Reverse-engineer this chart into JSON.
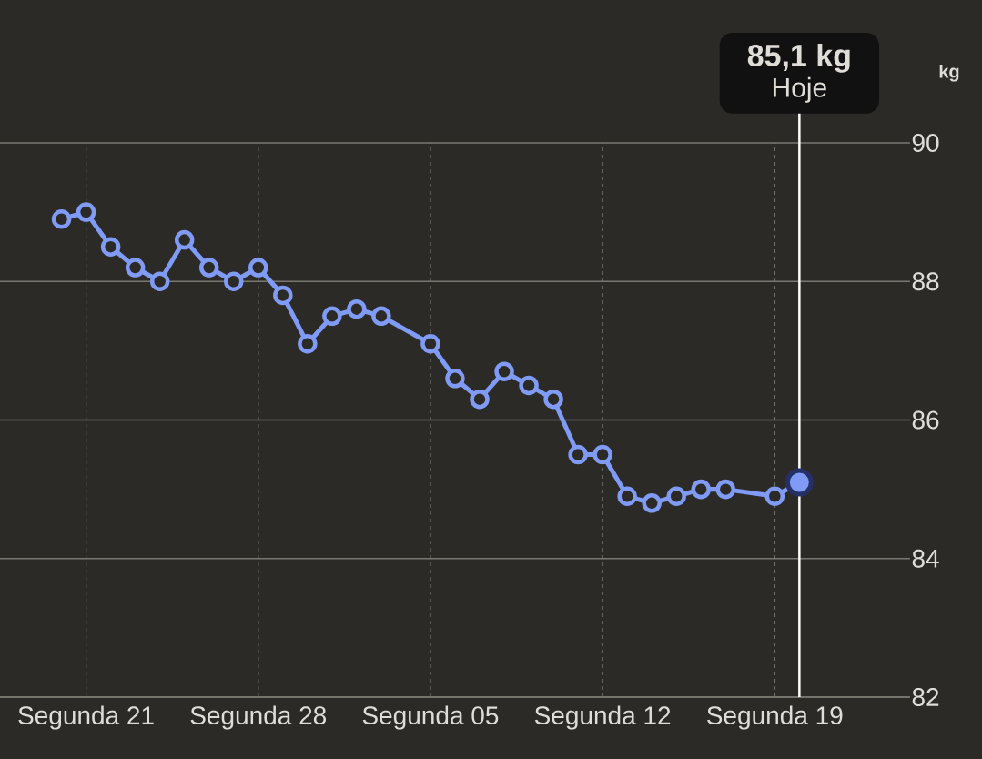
{
  "chart_data": {
    "type": "line",
    "ylabel": "kg",
    "categories": [
      null,
      null,
      null,
      "Segunda 21",
      null,
      null,
      null,
      null,
      null,
      null,
      "Segunda 28",
      null,
      null,
      null,
      null,
      null,
      null,
      "Segunda 05",
      null,
      null,
      null,
      null,
      null,
      null,
      "Segunda 12",
      null,
      null,
      null,
      null,
      null,
      null,
      "Segunda 19",
      null,
      null,
      null,
      null,
      null
    ],
    "series": [
      {
        "color": "#7f9bf5",
        "values": [
          null,
          null,
          88.9,
          89.0,
          88.5,
          88.2,
          88.0,
          88.6,
          88.2,
          88.0,
          88.2,
          87.8,
          87.1,
          87.5,
          87.6,
          87.5,
          null,
          87.1,
          86.6,
          86.3,
          86.7,
          86.5,
          86.3,
          85.5,
          85.5,
          84.9,
          84.8,
          84.9,
          85.0,
          85.0,
          null,
          84.9,
          85.1,
          null,
          null,
          null,
          null
        ]
      },
      {
        "type": "scatter",
        "color": "#7f9bf5",
        "values": [
          null,
          null,
          null,
          null,
          null,
          null,
          null,
          null,
          null,
          null,
          null,
          null,
          null,
          null,
          null,
          null,
          null,
          null,
          null,
          null,
          null,
          null,
          null,
          null,
          null,
          null,
          null,
          null,
          null,
          null,
          null,
          null,
          85.1,
          null,
          null,
          null,
          null
        ]
      }
    ],
    "ylim": [
      82,
      90
    ],
    "yticks": [
      82,
      84,
      86,
      88,
      90
    ],
    "grid": true,
    "marker": "circle",
    "line_style": "solid",
    "annotations": [
      "85,1 kg",
      "Hoje"
    ]
  }
}
